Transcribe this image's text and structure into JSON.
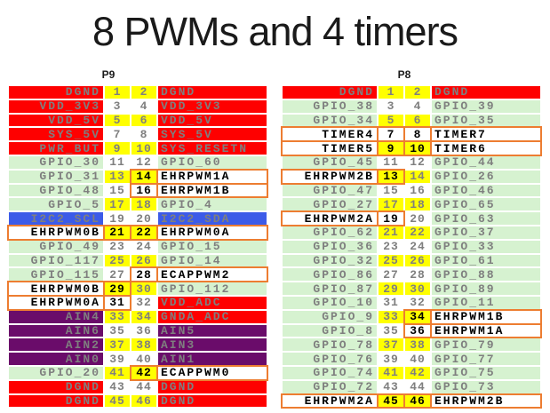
{
  "title": "8 PWMs and 4 timers",
  "colors": {
    "power_red": "#fe0000",
    "gpio_green": "#d6f2d0",
    "i2c_blue": "#3c5be8",
    "analog_purple": "#6a0c6a",
    "pin_yellow": "#ffff00",
    "highlight_border_orange": "#ed7d31",
    "muted_text": "#7f7f7f",
    "highlight_text": "#000000"
  },
  "tables": [
    {
      "name": "P9",
      "rows": [
        {
          "l": "DGND",
          "lt": "red",
          "n1": "1",
          "b1": false,
          "n2": "2",
          "b2": false,
          "r": "DGND",
          "rt": "red",
          "y": true
        },
        {
          "l": "VDD_3V3",
          "lt": "red",
          "n1": "3",
          "b1": false,
          "n2": "4",
          "b2": false,
          "r": "VDD_3V3",
          "rt": "red",
          "y": false
        },
        {
          "l": "VDD_5V",
          "lt": "red",
          "n1": "5",
          "b1": false,
          "n2": "6",
          "b2": false,
          "r": "VDD_5V",
          "rt": "red",
          "y": true
        },
        {
          "l": "SYS_5V",
          "lt": "red",
          "n1": "7",
          "b1": false,
          "n2": "8",
          "b2": false,
          "r": "SYS_5V",
          "rt": "red",
          "y": false
        },
        {
          "l": "PWR_BUT",
          "lt": "red",
          "n1": "9",
          "b1": false,
          "n2": "10",
          "b2": false,
          "r": "SYS_RESETN",
          "rt": "red",
          "y": true
        },
        {
          "l": "GPIO_30",
          "lt": "green",
          "n1": "11",
          "b1": false,
          "n2": "12",
          "b2": false,
          "r": "GPIO_60",
          "rt": "green",
          "y": false
        },
        {
          "l": "GPIO_31",
          "lt": "green",
          "n1": "13",
          "b1": false,
          "n2": "14",
          "b2": true,
          "r": "EHRPWM1A",
          "rt": "pwm",
          "y": true
        },
        {
          "l": "GPIO_48",
          "lt": "green",
          "n1": "15",
          "b1": false,
          "n2": "16",
          "b2": true,
          "r": "EHRPWM1B",
          "rt": "pwm",
          "y": false
        },
        {
          "l": "GPIO_5",
          "lt": "green",
          "n1": "17",
          "b1": false,
          "n2": "18",
          "b2": false,
          "r": "GPIO_4",
          "rt": "green",
          "y": true
        },
        {
          "l": "I2C2_SCL",
          "lt": "blue",
          "n1": "19",
          "b1": false,
          "n2": "20",
          "b2": false,
          "r": "I2C2_SDA",
          "rt": "blue",
          "y": false
        },
        {
          "l": "EHRPWM0B",
          "lt": "pwm",
          "n1": "21",
          "b1": true,
          "n2": "22",
          "b2": true,
          "r": "EHRPWM0A",
          "rt": "pwm",
          "y": true
        },
        {
          "l": "GPIO_49",
          "lt": "green",
          "n1": "23",
          "b1": false,
          "n2": "24",
          "b2": false,
          "r": "GPIO_15",
          "rt": "green",
          "y": false
        },
        {
          "l": "GPIO_117",
          "lt": "green",
          "n1": "25",
          "b1": false,
          "n2": "26",
          "b2": false,
          "r": "GPIO_14",
          "rt": "green",
          "y": true
        },
        {
          "l": "GPIO_115",
          "lt": "green",
          "n1": "27",
          "b1": false,
          "n2": "28",
          "b2": true,
          "r": "ECAPPWM2",
          "rt": "pwm",
          "y": false
        },
        {
          "l": "EHRPWM0B",
          "lt": "pwm",
          "n1": "29",
          "b1": true,
          "n2": "30",
          "b2": false,
          "r": "GPIO_112",
          "rt": "green",
          "y": true
        },
        {
          "l": "EHRPWM0A",
          "lt": "pwm",
          "n1": "31",
          "b1": true,
          "n2": "32",
          "b2": false,
          "r": "VDD_ADC",
          "rt": "red",
          "y": false
        },
        {
          "l": "AIN4",
          "lt": "purple",
          "n1": "33",
          "b1": false,
          "n2": "34",
          "b2": false,
          "r": "GNDA_ADC",
          "rt": "red",
          "y": true
        },
        {
          "l": "AIN6",
          "lt": "purple",
          "n1": "35",
          "b1": false,
          "n2": "36",
          "b2": false,
          "r": "AIN5",
          "rt": "purple",
          "y": false
        },
        {
          "l": "AIN2",
          "lt": "purple",
          "n1": "37",
          "b1": false,
          "n2": "38",
          "b2": false,
          "r": "AIN3",
          "rt": "purple",
          "y": true
        },
        {
          "l": "AIN0",
          "lt": "purple",
          "n1": "39",
          "b1": false,
          "n2": "40",
          "b2": false,
          "r": "AIN1",
          "rt": "purple",
          "y": false
        },
        {
          "l": "GPIO_20",
          "lt": "green",
          "n1": "41",
          "b1": false,
          "n2": "42",
          "b2": true,
          "r": "ECAPPWM0",
          "rt": "pwm",
          "y": true
        },
        {
          "l": "DGND",
          "lt": "red",
          "n1": "43",
          "b1": false,
          "n2": "44",
          "b2": false,
          "r": "DGND",
          "rt": "red",
          "y": false
        },
        {
          "l": "DGND",
          "lt": "red",
          "n1": "45",
          "b1": false,
          "n2": "46",
          "b2": false,
          "r": "DGND",
          "rt": "red",
          "y": true
        }
      ]
    },
    {
      "name": "P8",
      "rows": [
        {
          "l": "DGND",
          "lt": "red",
          "n1": "1",
          "b1": false,
          "n2": "2",
          "b2": false,
          "r": "DGND",
          "rt": "red",
          "y": true
        },
        {
          "l": "GPIO_38",
          "lt": "green",
          "n1": "3",
          "b1": false,
          "n2": "4",
          "b2": false,
          "r": "GPIO_39",
          "rt": "green",
          "y": false
        },
        {
          "l": "GPIO_34",
          "lt": "green",
          "n1": "5",
          "b1": false,
          "n2": "6",
          "b2": false,
          "r": "GPIO_35",
          "rt": "green",
          "y": true
        },
        {
          "l": "TIMER4",
          "lt": "pwm",
          "n1": "7",
          "b1": true,
          "n2": "8",
          "b2": true,
          "r": "TIMER7",
          "rt": "pwm",
          "y": false
        },
        {
          "l": "TIMER5",
          "lt": "pwm",
          "n1": "9",
          "b1": true,
          "n2": "10",
          "b2": true,
          "r": "TIMER6",
          "rt": "pwm",
          "y": true
        },
        {
          "l": "GPIO_45",
          "lt": "green",
          "n1": "11",
          "b1": false,
          "n2": "12",
          "b2": false,
          "r": "GPIO_44",
          "rt": "green",
          "y": false
        },
        {
          "l": "EHRPWM2B",
          "lt": "pwm",
          "n1": "13",
          "b1": true,
          "n2": "14",
          "b2": false,
          "r": "GPIO_26",
          "rt": "green",
          "y": true
        },
        {
          "l": "GPIO_47",
          "lt": "green",
          "n1": "15",
          "b1": false,
          "n2": "16",
          "b2": false,
          "r": "GPIO_46",
          "rt": "green",
          "y": false
        },
        {
          "l": "GPIO_27",
          "lt": "green",
          "n1": "17",
          "b1": false,
          "n2": "18",
          "b2": false,
          "r": "GPIO_65",
          "rt": "green",
          "y": true
        },
        {
          "l": "EHRPWM2A",
          "lt": "pwm",
          "n1": "19",
          "b1": true,
          "n2": "20",
          "b2": false,
          "r": "GPIO_63",
          "rt": "green",
          "y": false
        },
        {
          "l": "GPIO_62",
          "lt": "green",
          "n1": "21",
          "b1": false,
          "n2": "22",
          "b2": false,
          "r": "GPIO_37",
          "rt": "green",
          "y": true
        },
        {
          "l": "GPIO_36",
          "lt": "green",
          "n1": "23",
          "b1": false,
          "n2": "24",
          "b2": false,
          "r": "GPIO_33",
          "rt": "green",
          "y": false
        },
        {
          "l": "GPIO_32",
          "lt": "green",
          "n1": "25",
          "b1": false,
          "n2": "26",
          "b2": false,
          "r": "GPIO_61",
          "rt": "green",
          "y": true
        },
        {
          "l": "GPIO_86",
          "lt": "green",
          "n1": "27",
          "b1": false,
          "n2": "28",
          "b2": false,
          "r": "GPIO_88",
          "rt": "green",
          "y": false
        },
        {
          "l": "GPIO_87",
          "lt": "green",
          "n1": "29",
          "b1": false,
          "n2": "30",
          "b2": false,
          "r": "GPIO_89",
          "rt": "green",
          "y": true
        },
        {
          "l": "GPIO_10",
          "lt": "green",
          "n1": "31",
          "b1": false,
          "n2": "32",
          "b2": false,
          "r": "GPIO_11",
          "rt": "green",
          "y": false
        },
        {
          "l": "GPIO_9",
          "lt": "green",
          "n1": "33",
          "b1": false,
          "n2": "34",
          "b2": true,
          "r": "EHRPWM1B",
          "rt": "pwm",
          "y": true
        },
        {
          "l": "GPIO_8",
          "lt": "green",
          "n1": "35",
          "b1": false,
          "n2": "36",
          "b2": true,
          "r": "EHRPWM1A",
          "rt": "pwm",
          "y": false
        },
        {
          "l": "GPIO_78",
          "lt": "green",
          "n1": "37",
          "b1": false,
          "n2": "38",
          "b2": false,
          "r": "GPIO_79",
          "rt": "green",
          "y": true
        },
        {
          "l": "GPIO_76",
          "lt": "green",
          "n1": "39",
          "b1": false,
          "n2": "40",
          "b2": false,
          "r": "GPIO_77",
          "rt": "green",
          "y": false
        },
        {
          "l": "GPIO_74",
          "lt": "green",
          "n1": "41",
          "b1": false,
          "n2": "42",
          "b2": false,
          "r": "GPIO_75",
          "rt": "green",
          "y": true
        },
        {
          "l": "GPIO_72",
          "lt": "green",
          "n1": "43",
          "b1": false,
          "n2": "44",
          "b2": false,
          "r": "GPIO_73",
          "rt": "green",
          "y": false
        },
        {
          "l": "EHRPWM2A",
          "lt": "pwm",
          "n1": "45",
          "b1": true,
          "n2": "46",
          "b2": true,
          "r": "EHRPWM2B",
          "rt": "pwm",
          "y": true
        }
      ]
    }
  ]
}
